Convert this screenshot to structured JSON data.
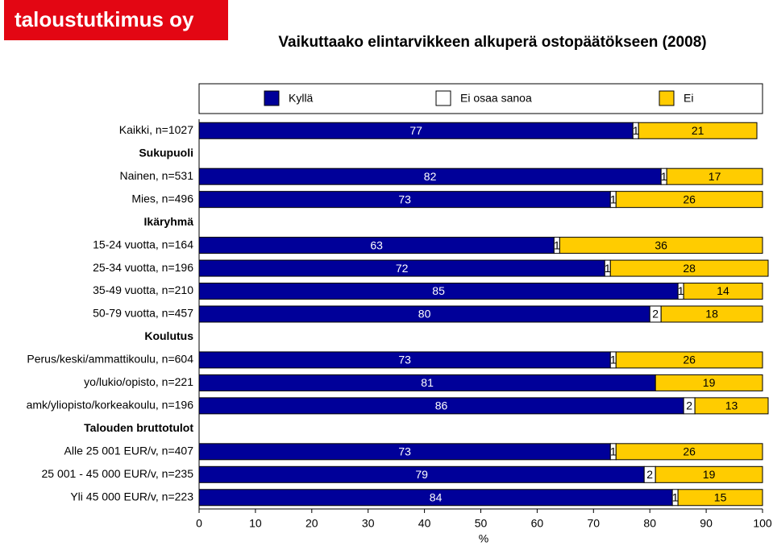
{
  "logo": "taloustutkimus oy",
  "chart_data": {
    "type": "stacked-bar-horizontal",
    "title": "Vaikuttaako elintarvikkeen alkuperä ostopäätökseen (2008)",
    "xlabel": "%",
    "categories": [
      "Kaikki, n=1027",
      "Sukupuoli",
      "Nainen, n=531",
      "Mies, n=496",
      "Ikäryhmä",
      "15-24 vuotta, n=164",
      "25-34 vuotta, n=196",
      "35-49 vuotta, n=210",
      "50-79 vuotta, n=457",
      "Koulutus",
      "Perus/keski/ammattikoulu, n=604",
      "yo/lukio/opisto, n=221",
      "amk/yliopisto/korkeakoulu, n=196",
      "Talouden bruttotulot",
      "Alle 25 001 EUR/v, n=407",
      "25 001 - 45 000 EUR/v, n=235",
      "Yli 45 000 EUR/v, n=223"
    ],
    "series": [
      {
        "name": "Kyllä",
        "color": "#000099",
        "values": [
          77,
          null,
          82,
          73,
          null,
          63,
          72,
          85,
          80,
          null,
          73,
          81,
          86,
          null,
          73,
          79,
          84
        ]
      },
      {
        "name": "Ei osaa sanoa",
        "color": "#ffffff",
        "values": [
          1,
          null,
          1,
          1,
          null,
          1,
          1,
          1,
          2,
          null,
          1,
          null,
          2,
          null,
          1,
          2,
          1
        ]
      },
      {
        "name": "Ei",
        "color": "#ffcc00",
        "values": [
          21,
          null,
          17,
          26,
          null,
          36,
          28,
          14,
          18,
          null,
          26,
          19,
          13,
          null,
          26,
          19,
          15
        ]
      }
    ],
    "xlim": [
      0,
      100
    ],
    "xticks": [
      0,
      10,
      20,
      30,
      40,
      50,
      60,
      70,
      80,
      90,
      100
    ],
    "legend": "top"
  }
}
